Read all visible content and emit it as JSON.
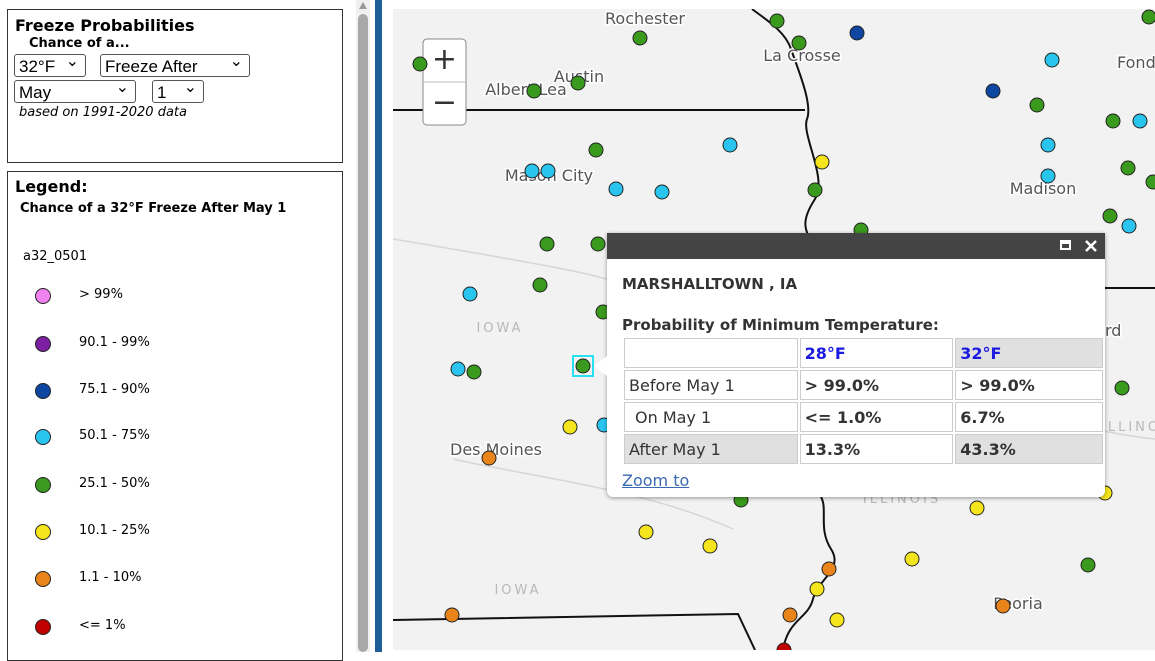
{
  "panel": {
    "title": "Freeze Probabilities",
    "subtitle": "Chance of a...",
    "selects": {
      "temperature": "32°F",
      "type": "Freeze After",
      "month": "May",
      "day": "1"
    },
    "note": "based on 1991-2020 data"
  },
  "legend": {
    "title": "Legend:",
    "subtitle": "Chance of a 32°F Freeze After May 1",
    "layer": "a32_0501",
    "items": [
      {
        "label": "> 99%",
        "color": "#ee82ee"
      },
      {
        "label": "90.1 - 99%",
        "color": "#7b1fa2"
      },
      {
        "label": "75.1 - 90%",
        "color": "#0d47a1"
      },
      {
        "label": "50.1 - 75%",
        "color": "#29c5ef"
      },
      {
        "label": "25.1 - 50%",
        "color": "#3a9a1e"
      },
      {
        "label": "10.1 - 25%",
        "color": "#f5e51c"
      },
      {
        "label": "1.1 - 10%",
        "color": "#e8841a"
      },
      {
        "label": "<= 1%",
        "color": "#c00000"
      }
    ]
  },
  "map": {
    "zoom_in": "+",
    "zoom_out": "−",
    "labels": [
      "Rochester",
      "La Crosse",
      "Albert Lea",
      "Austin",
      "Mason City",
      "Madison",
      "Fond",
      "IOWA",
      "Des Moines",
      "IOWA",
      "Peoria",
      "rd",
      "ILLINOIS",
      "ILLINOIS"
    ]
  },
  "popup": {
    "title": "MARSHALLTOWN , IA",
    "heading": "Probability of Minimum Temperature:",
    "columns": [
      "28°F",
      "32°F"
    ],
    "rows": [
      [
        "Before May 1",
        "> 99.0%",
        "> 99.0%"
      ],
      [
        "On May 1",
        "<= 1.0%",
        "6.7%"
      ],
      [
        "After May 1",
        "13.3%",
        "43.3%"
      ]
    ],
    "link": "Zoom to"
  }
}
